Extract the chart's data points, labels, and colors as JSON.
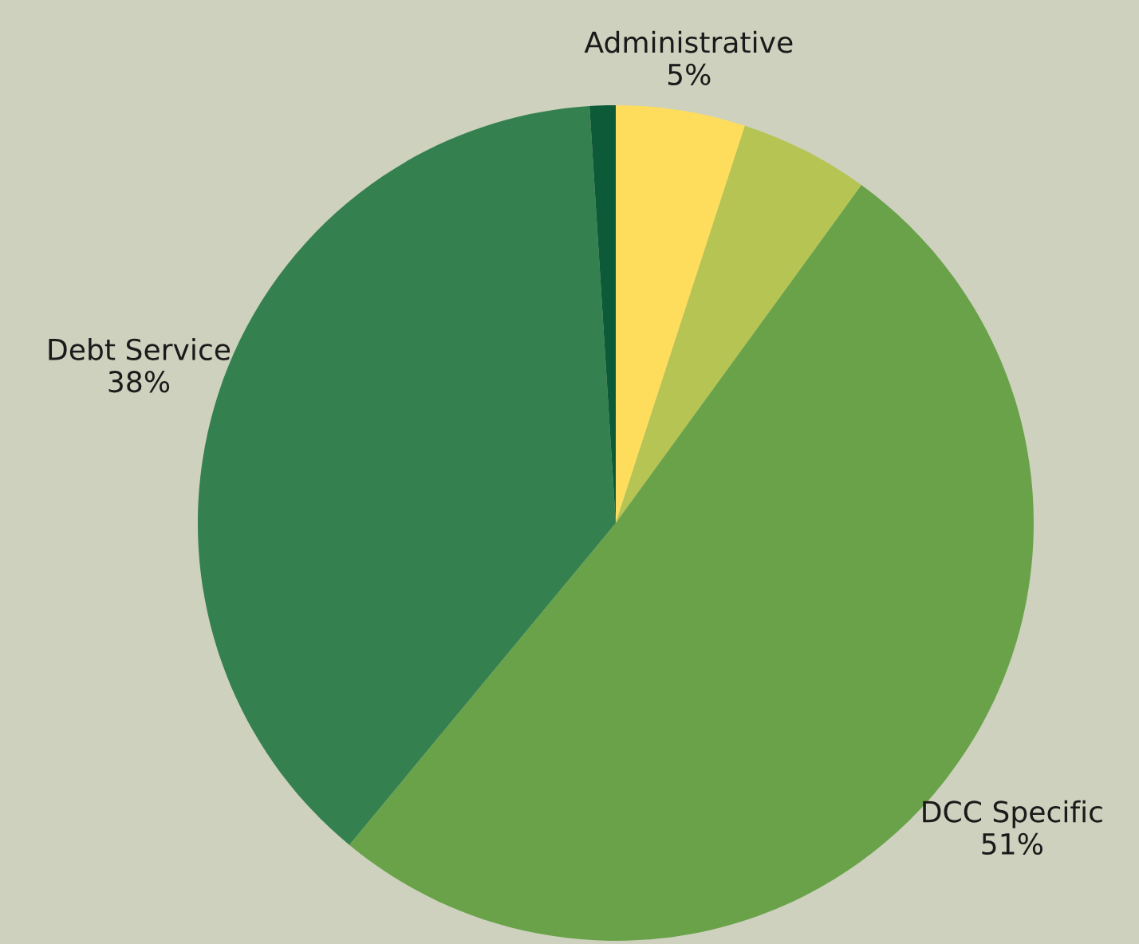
{
  "chart_data": {
    "type": "pie",
    "categories": [
      "Administrative",
      null,
      "DCC Specific",
      "Debt Service",
      null
    ],
    "values": [
      5,
      5,
      51,
      38,
      1
    ],
    "value_labels": [
      "5%",
      null,
      "51%",
      "38%",
      null
    ],
    "colors": [
      "#ffdd5c",
      "#b5c452",
      "#6aa24a",
      "#34804e",
      "#0d5a38"
    ]
  }
}
